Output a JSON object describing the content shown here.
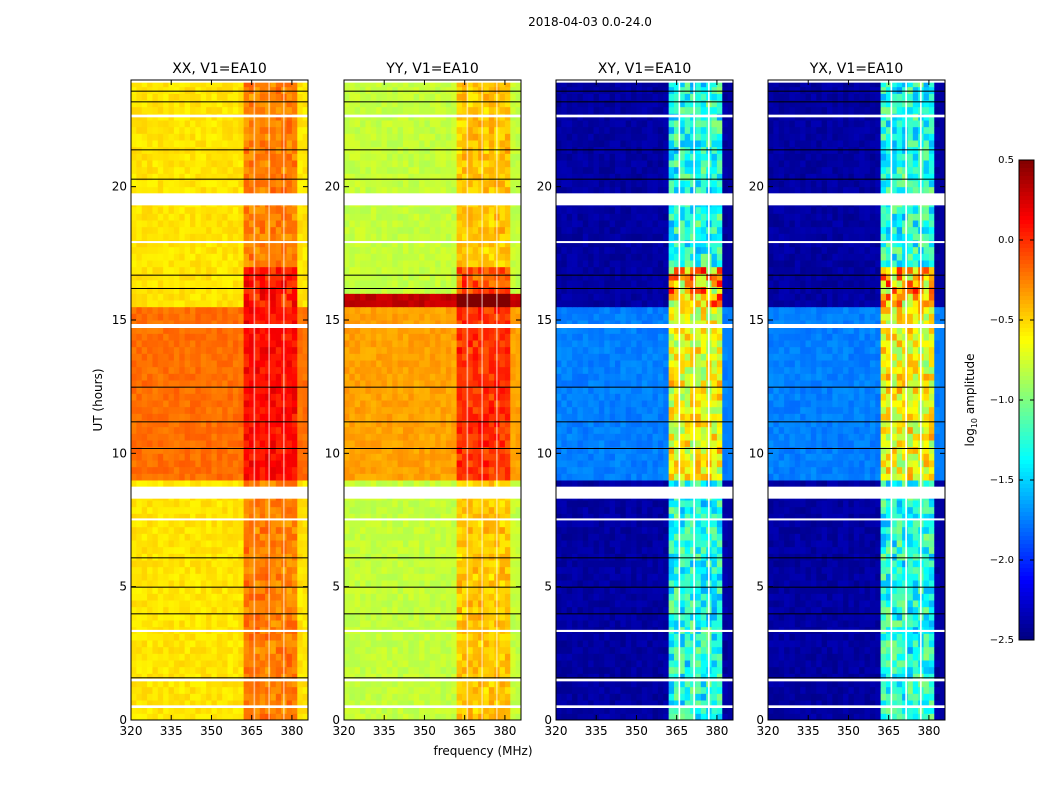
{
  "chart_data": {
    "type": "heatmap",
    "suptitle": "2018-04-03 0.0-24.0",
    "xlabel": "frequency (MHz)",
    "ylabel": "UT (hours)",
    "xlim": [
      320,
      386
    ],
    "ylim": [
      0,
      24
    ],
    "xticks": [
      "320",
      "335",
      "350",
      "365",
      "380"
    ],
    "xtick_values": [
      320,
      335,
      350,
      365,
      380
    ],
    "yticks": [
      "0",
      "5",
      "10",
      "15",
      "20"
    ],
    "ytick_values": [
      0,
      5,
      10,
      15,
      20
    ],
    "colorbar": {
      "label": "log10 amplitude",
      "label_base": "log",
      "label_sub": "10",
      "label_rest": " amplitude",
      "range": [
        -2.5,
        0.5
      ],
      "ticks": [
        "0.5",
        "0.0",
        "−0.5",
        "−1.0",
        "−1.5",
        "−2.0",
        "−2.5"
      ],
      "tick_values": [
        0.5,
        0.0,
        -0.5,
        -1.0,
        -1.5,
        -2.0,
        -2.5
      ],
      "colormap": "jet"
    },
    "rfi_band_mhz": [
      362,
      381
    ],
    "flagged_hours": [
      [
        8.3,
        8.75
      ],
      [
        19.3,
        19.75
      ],
      [
        14.7,
        14.85
      ],
      [
        0.45,
        0.55
      ],
      [
        1.45,
        1.55
      ],
      [
        3.3,
        3.38
      ],
      [
        7.5,
        7.56
      ],
      [
        17.9,
        17.96
      ],
      [
        22.6,
        22.7
      ],
      [
        23.9,
        24.0
      ]
    ],
    "black_line_hours": [
      1.6,
      4.0,
      5.0,
      6.1,
      10.2,
      11.2,
      12.5,
      16.2,
      16.7,
      20.3,
      21.4,
      23.2,
      23.6
    ],
    "panels": [
      {
        "title": "XX, V1=EA10",
        "time_levels": [
          [
            0,
            8.8,
            -0.55
          ],
          [
            8.8,
            15.5,
            -0.2
          ],
          [
            15.5,
            24,
            -0.55
          ]
        ],
        "band_boost": 0.35,
        "band_boost_15_17": 0.7
      },
      {
        "title": "YY, V1=EA10",
        "time_levels": [
          [
            0,
            8.8,
            -0.8
          ],
          [
            8.8,
            15.5,
            -0.35
          ],
          [
            15.5,
            16.0,
            0.3
          ],
          [
            16.0,
            24,
            -0.8
          ]
        ],
        "band_boost": 0.4,
        "band_boost_15_17": 0.8
      },
      {
        "title": "XY, V1=EA10",
        "time_levels": [
          [
            0,
            8.8,
            -2.4
          ],
          [
            8.8,
            15.5,
            -1.75
          ],
          [
            15.5,
            24,
            -2.4
          ]
        ],
        "band_boost": 1.3,
        "band_boost_15_17": 2.3
      },
      {
        "title": "YX, V1=EA10",
        "time_levels": [
          [
            0,
            8.8,
            -2.4
          ],
          [
            8.8,
            15.5,
            -1.75
          ],
          [
            15.5,
            24,
            -2.4
          ]
        ],
        "band_boost": 1.3,
        "band_boost_15_17": 2.3
      }
    ]
  }
}
